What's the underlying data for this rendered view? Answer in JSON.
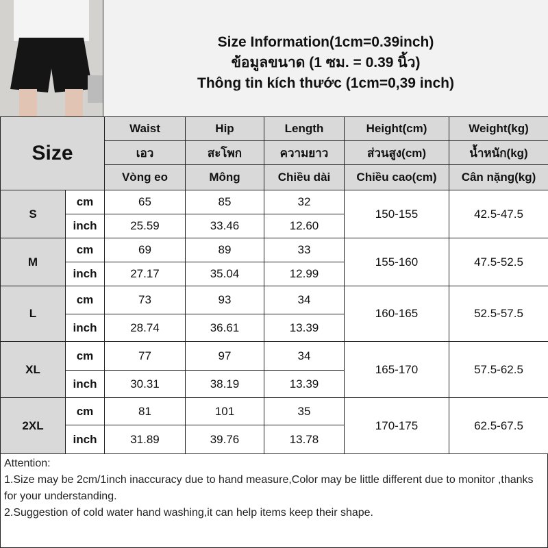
{
  "title": {
    "line1": "Size Information(1cm=0.39inch)",
    "line2": "ข้อมูลขนาด (1 ซม. = 0.39 นิ้ว)",
    "line3": "Thông tin kích thước (1cm=0,39 inch)"
  },
  "header": {
    "size_label": "Size",
    "columns": [
      {
        "en": "Waist",
        "th": "เอว",
        "vi": "Vòng eo"
      },
      {
        "en": "Hip",
        "th": "สะโพก",
        "vi": "Mông"
      },
      {
        "en": "Length",
        "th": "ความยาว",
        "vi": "Chiều dài"
      },
      {
        "en": "Height(cm)",
        "th": "ส่วนสูง(cm)",
        "vi": "Chiều cao(cm)"
      },
      {
        "en": "Weight(kg)",
        "th": "น้ำหนัก(kg)",
        "vi": "Cân nặng(kg)"
      }
    ]
  },
  "sizes": [
    {
      "size": "S",
      "cm": [
        "65",
        "85",
        "32"
      ],
      "inch": [
        "25.59",
        "33.46",
        "12.60"
      ],
      "height": "150-155",
      "weight": "42.5-47.5"
    },
    {
      "size": "M",
      "cm": [
        "69",
        "89",
        "33"
      ],
      "inch": [
        "27.17",
        "35.04",
        "12.99"
      ],
      "height": "155-160",
      "weight": "47.5-52.5"
    },
    {
      "size": "L",
      "cm": [
        "73",
        "93",
        "34"
      ],
      "inch": [
        "28.74",
        "36.61",
        "13.39"
      ],
      "height": "160-165",
      "weight": "52.5-57.5"
    },
    {
      "size": "XL",
      "cm": [
        "77",
        "97",
        "34"
      ],
      "inch": [
        "30.31",
        "38.19",
        "13.39"
      ],
      "height": "165-170",
      "weight": "57.5-62.5"
    },
    {
      "size": "2XL",
      "cm": [
        "81",
        "101",
        "35"
      ],
      "inch": [
        "31.89",
        "39.76",
        "13.78"
      ],
      "height": "170-175",
      "weight": "62.5-67.5"
    }
  ],
  "units": {
    "cm": "cm",
    "inch": "inch"
  },
  "attention": {
    "heading": "Attention:",
    "line1": "1.Size may be 2cm/1inch inaccuracy due to hand measure,Color may be little different due to monitor ,thanks for your understanding.",
    "line2": "2.Suggestion of cold water hand washing,it can help items keep their shape."
  }
}
